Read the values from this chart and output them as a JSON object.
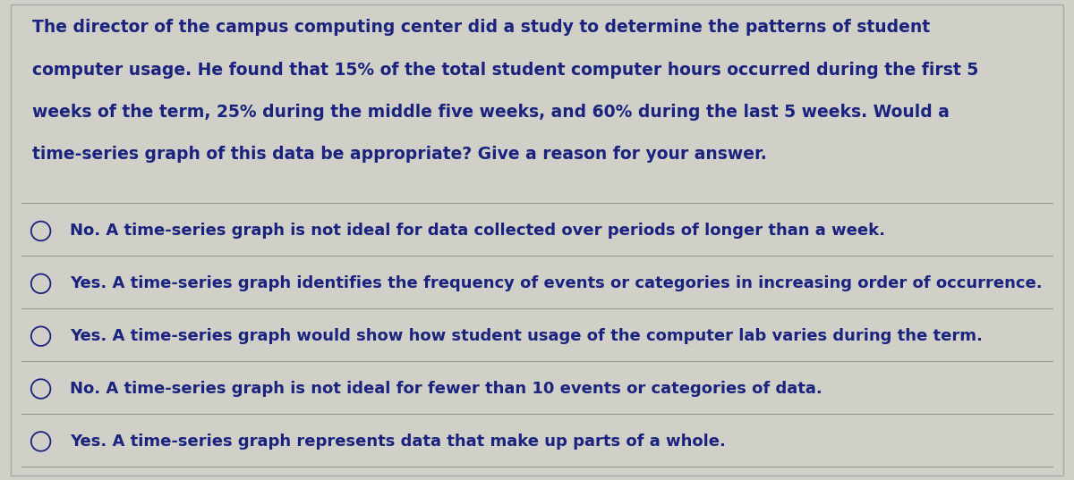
{
  "background_color": "#d0cfc8",
  "question_text": [
    "The director of the campus computing center did a study to determine the patterns of student",
    "computer usage. He found that 15% of the total student computer hours occurred during the first 5",
    "weeks of the term, 25% during the middle five weeks, and 60% during the last 5 weeks. Would a",
    "time-series graph of this data be appropriate? Give a reason for your answer."
  ],
  "options": [
    "No. A time-series graph is not ideal for data collected over periods of longer than a week.",
    "Yes. A time-series graph identifies the frequency of events or categories in increasing order of occurrence.",
    "Yes. A time-series graph would show how student usage of the computer lab varies during the term.",
    "No. A time-series graph is not ideal for fewer than 10 events or categories of data.",
    "Yes. A time-series graph represents data that make up parts of a whole."
  ],
  "text_color": "#1a237e",
  "question_font_size": 13.5,
  "option_font_size": 13.0,
  "line_color": "#999990",
  "circle_color": "#1a237e",
  "border_color": "#aaaaaa"
}
